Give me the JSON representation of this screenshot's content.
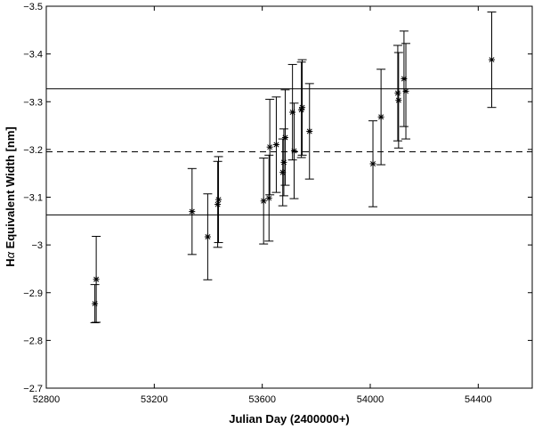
{
  "chart_data": {
    "type": "scatter",
    "title": "",
    "xlabel": "Julian Day (2400000+)",
    "ylabel_prefix": "H",
    "ylabel_greek": "α",
    "ylabel_suffix": " Equivalent Width [nm]",
    "xlim": [
      52800,
      54600
    ],
    "ylim": [
      -3.5,
      -2.7
    ],
    "y_inverted": true,
    "x_ticks": [
      52800,
      53200,
      53600,
      54000,
      54400
    ],
    "x_tick_labels": [
      "52800",
      "53200",
      "53600",
      "54000",
      "54400"
    ],
    "y_ticks": [
      -3.5,
      -3.4,
      -3.3,
      -3.2,
      -3.1,
      -3.0,
      -2.9,
      -2.8,
      -2.7
    ],
    "y_tick_labels": [
      "−3.5",
      "−3.4",
      "−3.3",
      "−3.2",
      "−3.1",
      "−3",
      "−2.9",
      "−2.8",
      "−2.7"
    ],
    "grid": false,
    "marker": "*",
    "points": [
      {
        "x": 52980,
        "y": -2.877,
        "yerr": 0.04
      },
      {
        "x": 52985,
        "y": -2.928,
        "yerr": 0.09
      },
      {
        "x": 53340,
        "y": -3.07,
        "yerr": 0.09
      },
      {
        "x": 53398,
        "y": -3.017,
        "yerr": 0.09
      },
      {
        "x": 53435,
        "y": -3.085,
        "yerr": 0.09
      },
      {
        "x": 53438,
        "y": -3.095,
        "yerr": 0.09
      },
      {
        "x": 53605,
        "y": -3.092,
        "yerr": 0.09
      },
      {
        "x": 53625,
        "y": -3.098,
        "yerr": 0.09
      },
      {
        "x": 53628,
        "y": -3.205,
        "yerr": 0.1
      },
      {
        "x": 53652,
        "y": -3.21,
        "yerr": 0.1
      },
      {
        "x": 53676,
        "y": -3.152,
        "yerr": 0.07
      },
      {
        "x": 53680,
        "y": -3.173,
        "yerr": 0.07
      },
      {
        "x": 53685,
        "y": -3.225,
        "yerr": 0.1
      },
      {
        "x": 53712,
        "y": -3.278,
        "yerr": 0.1
      },
      {
        "x": 53718,
        "y": -3.197,
        "yerr": 0.1
      },
      {
        "x": 53745,
        "y": -3.283,
        "yerr": 0.1
      },
      {
        "x": 53748,
        "y": -3.288,
        "yerr": 0.1
      },
      {
        "x": 53775,
        "y": -3.238,
        "yerr": 0.1
      },
      {
        "x": 54010,
        "y": -3.17,
        "yerr": 0.09
      },
      {
        "x": 54040,
        "y": -3.268,
        "yerr": 0.1
      },
      {
        "x": 54102,
        "y": -3.318,
        "yerr": 0.1
      },
      {
        "x": 54105,
        "y": -3.303,
        "yerr": 0.1
      },
      {
        "x": 54125,
        "y": -3.348,
        "yerr": 0.1
      },
      {
        "x": 54132,
        "y": -3.322,
        "yerr": 0.1
      },
      {
        "x": 54450,
        "y": -3.388,
        "yerr": 0.1
      }
    ],
    "reference_lines": [
      {
        "y": -3.327,
        "style": "solid"
      },
      {
        "y": -3.195,
        "style": "dashed"
      },
      {
        "y": -3.063,
        "style": "solid"
      }
    ]
  }
}
